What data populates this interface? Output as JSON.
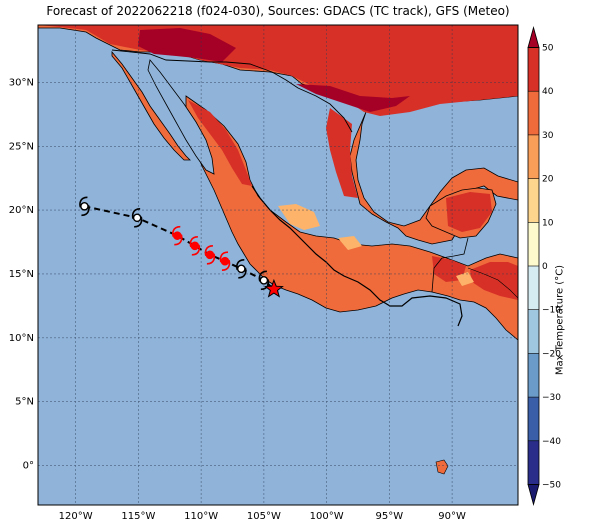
{
  "title": "Forecast of 2022062218 (f024-030), Sources: GDACS (TC track), GFS (Meteo)",
  "colorbar": {
    "label": "Max Temperature (°C)",
    "ticks": [
      "50",
      "40",
      "30",
      "20",
      "10",
      "0",
      "−10",
      "−20",
      "−30",
      "−40",
      "−50"
    ],
    "colors": [
      "#2a2d8a",
      "#3a5fa8",
      "#6b9bc8",
      "#9fc8e0",
      "#d6ecf3",
      "#fdfacd",
      "#fed58c",
      "#f99e59",
      "#ef6b3c",
      "#d73027",
      "#a50026"
    ]
  },
  "map": {
    "lat_labels": [
      "30°N",
      "25°N",
      "20°N",
      "15°N",
      "10°N",
      "5°N",
      "0°"
    ],
    "lon_labels": [
      "120°W",
      "115°W",
      "110°W",
      "105°W",
      "100°W",
      "95°W",
      "90°W"
    ],
    "ocean_color": "#8fb3d9",
    "track": [
      {
        "lon": -119.3,
        "lat": 20.3,
        "color": "black"
      },
      {
        "lon": -115.1,
        "lat": 19.4,
        "color": "black"
      },
      {
        "lon": -111.9,
        "lat": 18.0,
        "color": "red"
      },
      {
        "lon": -110.5,
        "lat": 17.2,
        "color": "red"
      },
      {
        "lon": -109.3,
        "lat": 16.5,
        "color": "red"
      },
      {
        "lon": -108.1,
        "lat": 16.0,
        "color": "red"
      },
      {
        "lon": -106.8,
        "lat": 15.4,
        "color": "black"
      },
      {
        "lon": -105.0,
        "lat": 14.5,
        "color": "black"
      }
    ],
    "current_position": {
      "lon": -104.2,
      "lat": 13.8
    }
  }
}
